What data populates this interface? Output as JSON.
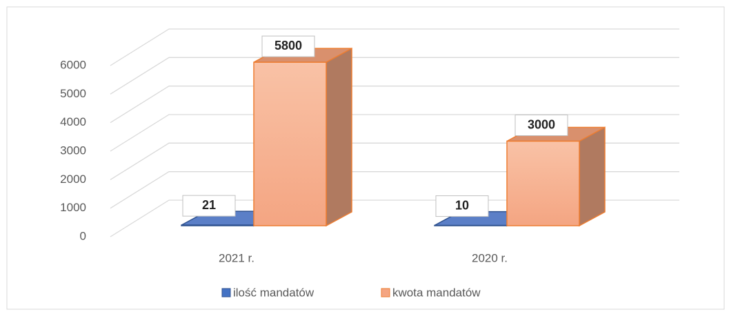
{
  "chart_data": {
    "type": "bar3d",
    "categories": [
      "2021 r.",
      "2020 r."
    ],
    "series": [
      {
        "name": "ilość mandatów",
        "color": "#4472c4",
        "values": [
          21,
          10
        ]
      },
      {
        "name": "kwota mandatów",
        "color": "#f4a582",
        "values": [
          5800,
          3000
        ]
      }
    ],
    "ylim": [
      0,
      6000
    ],
    "yticks": [
      0,
      1000,
      2000,
      3000,
      4000,
      5000,
      6000
    ],
    "grid": true,
    "legend": "bottom"
  }
}
